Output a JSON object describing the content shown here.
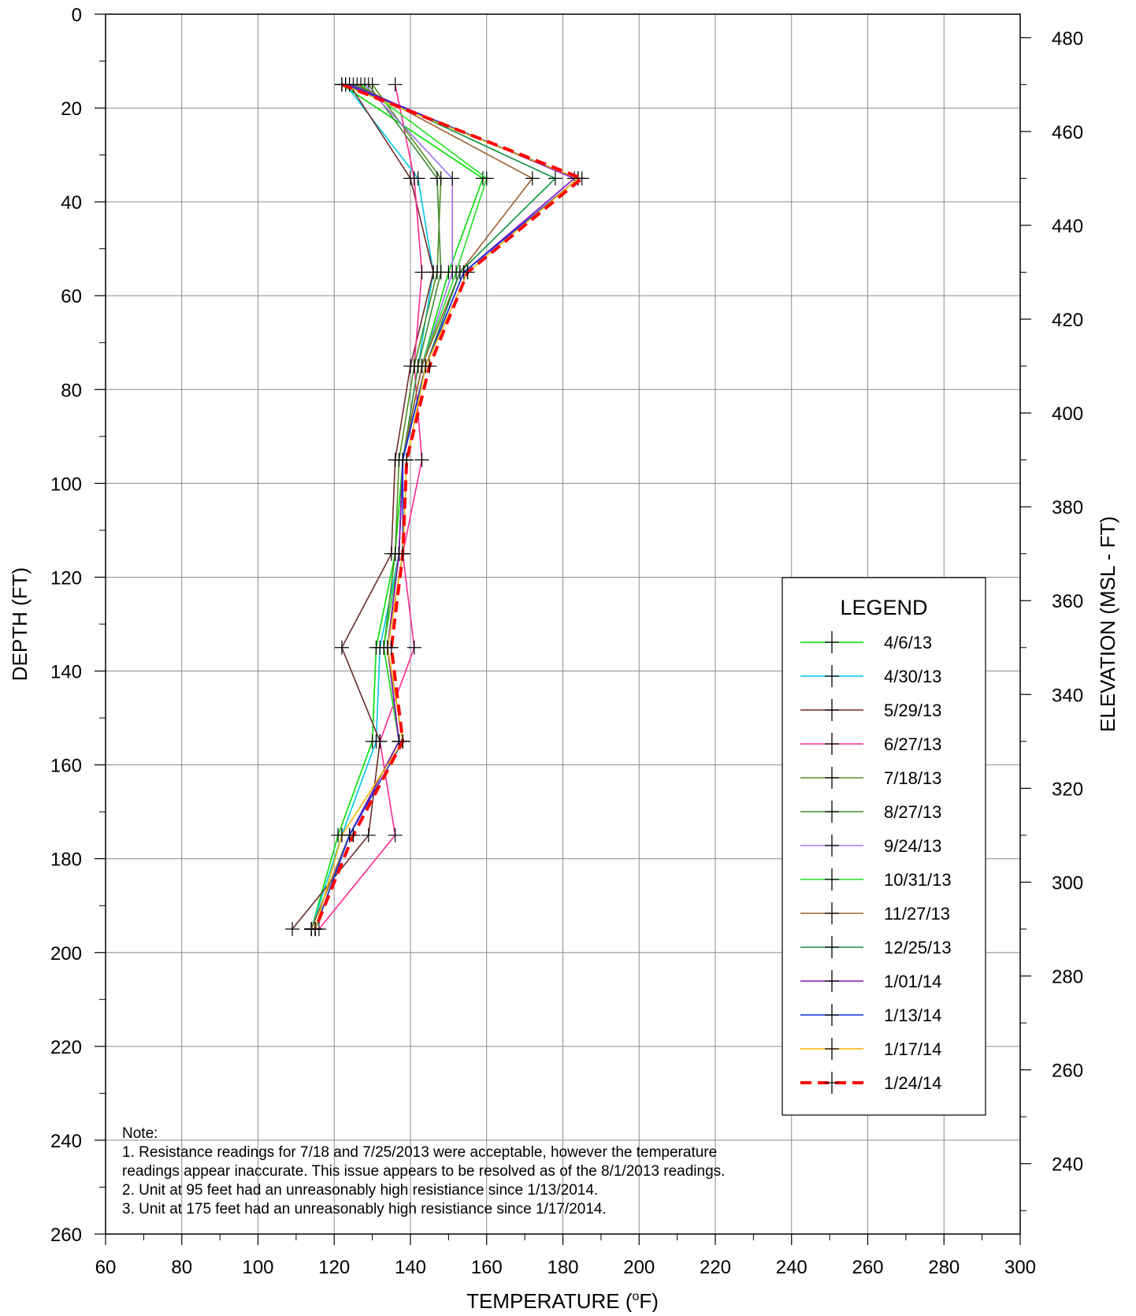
{
  "chart_data": {
    "type": "line",
    "xlabel": "TEMPERATURE (°F)",
    "xlabel_main": "TEMPERATURE (",
    "xlabel_sup": "o",
    "xlabel_tail": "F)",
    "ylabel": "DEPTH (FT)",
    "y2label": "ELEVATION (MSL - FT)",
    "xlim": [
      60,
      300
    ],
    "ylim": [
      0,
      260
    ],
    "y_inverted": true,
    "y2lim": [
      485,
      225
    ],
    "x_ticks": [
      60,
      80,
      100,
      120,
      140,
      160,
      180,
      200,
      220,
      240,
      260,
      280,
      300
    ],
    "y_ticks": [
      0,
      20,
      40,
      60,
      80,
      100,
      120,
      140,
      160,
      180,
      200,
      220,
      240,
      260
    ],
    "y2_ticks": [
      480,
      460,
      440,
      420,
      400,
      380,
      360,
      340,
      320,
      300,
      280,
      260,
      240
    ],
    "grid": true,
    "legend": {
      "title": "LEGEND",
      "placement": "lower-right"
    },
    "depths": [
      15,
      35,
      55,
      75,
      95,
      115,
      135,
      155,
      175,
      195
    ],
    "series": [
      {
        "name": "4/6/13",
        "color": "#00e000",
        "dashed": false,
        "values": [
          122,
          159,
          150,
          143,
          138,
          136,
          131,
          130,
          121,
          114
        ]
      },
      {
        "name": "4/30/13",
        "color": "#00c8e8",
        "dashed": false,
        "values": [
          123,
          142,
          146,
          142,
          138,
          137,
          132,
          131,
          122,
          114
        ]
      },
      {
        "name": "5/29/13",
        "color": "#6e2c2c",
        "dashed": false,
        "values": [
          124,
          140,
          146,
          140,
          136,
          135,
          122,
          132,
          129,
          109
        ]
      },
      {
        "name": "6/27/13",
        "color": "#ff2890",
        "dashed": false,
        "values": [
          136,
          141,
          143,
          141,
          143,
          138,
          141,
          132,
          136,
          116
        ]
      },
      {
        "name": "7/18/13",
        "color": "#509020",
        "dashed": false,
        "values": [
          130,
          148,
          147,
          141,
          137,
          136,
          133,
          137,
          124,
          114
        ]
      },
      {
        "name": "8/27/13",
        "color": "#408a30",
        "dashed": false,
        "values": [
          129,
          147,
          148,
          142,
          138,
          137,
          134,
          137,
          124,
          114
        ]
      },
      {
        "name": "9/24/13",
        "color": "#a070f0",
        "dashed": false,
        "values": [
          128,
          151,
          151,
          143,
          138,
          137,
          133,
          137,
          124,
          114
        ]
      },
      {
        "name": "10/31/13",
        "color": "#20e020",
        "dashed": false,
        "values": [
          127,
          160,
          152,
          143,
          138,
          137,
          133,
          137,
          124,
          114
        ]
      },
      {
        "name": "11/27/13",
        "color": "#a06030",
        "dashed": false,
        "values": [
          126,
          172,
          153,
          143,
          138,
          137,
          134,
          137,
          124,
          114
        ]
      },
      {
        "name": "12/25/13",
        "color": "#109040",
        "dashed": false,
        "values": [
          125,
          178,
          153,
          144,
          138,
          137,
          134,
          137,
          124,
          115
        ]
      },
      {
        "name": "1/01/14",
        "color": "#8a10c0",
        "dashed": false,
        "values": [
          124,
          183,
          154,
          144,
          138,
          137,
          134,
          137,
          124,
          115
        ]
      },
      {
        "name": "1/13/14",
        "color": "#1030e0",
        "dashed": false,
        "values": [
          123,
          184,
          154,
          144,
          138,
          138,
          134,
          138,
          124,
          115
        ]
      },
      {
        "name": "1/17/14",
        "color": "#f0b400",
        "dashed": false,
        "values": [
          122,
          184,
          155,
          144,
          139,
          138,
          134,
          138,
          122,
          115
        ]
      },
      {
        "name": "1/24/14",
        "color": "#ff0000",
        "dashed": true,
        "values": [
          122,
          185,
          155,
          145,
          139,
          138,
          135,
          138,
          125,
          115
        ]
      }
    ],
    "note": {
      "lines": [
        "Note:",
        "1. Resistance readings for 7/18 and 7/25/2013 were acceptable, however the temperature",
        "readings appear inaccurate.  This issue appears to be resolved as of the 8/1/2013 readings.",
        "2. Unit at 95 feet had an unreasonably high resistiance since 1/13/2014.",
        "3. Unit at 175 feet had an unreasonably high resistiance since 1/17/2014."
      ]
    }
  }
}
